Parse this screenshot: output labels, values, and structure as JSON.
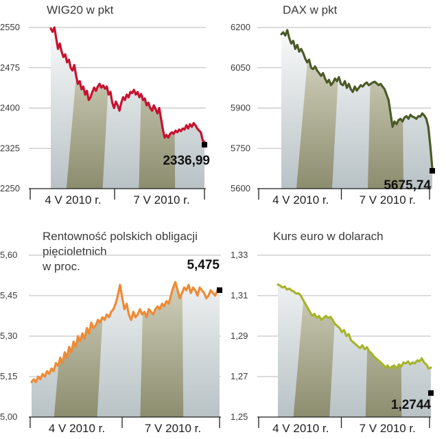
{
  "chart_data": [
    {
      "type": "line",
      "title": "WIG20 w pkt",
      "color": "#c8102e",
      "yticks": [
        "2550",
        "2475",
        "2400",
        "2325",
        "2250"
      ],
      "ylim": [
        2250,
        2550
      ],
      "x_labels": [
        "4 V 2010 r.",
        "7 V 2010 r."
      ],
      "last_value_label": "2336,99",
      "series": [
        {
          "values": [
            2548,
            2542,
            2550,
            2530,
            2510,
            2520,
            2505,
            2495,
            2500,
            2485,
            2490,
            2475,
            2470,
            2480,
            2460,
            2445,
            2450,
            2435,
            2440,
            2425,
            2432,
            2415,
            2420,
            2430,
            2438,
            2432,
            2440,
            2445,
            2438,
            2442,
            2436,
            2440,
            2425,
            2430,
            2410,
            2400,
            2412,
            2405,
            2395,
            2410,
            2420,
            2415,
            2425,
            2420,
            2430,
            2428,
            2434,
            2425,
            2430,
            2420,
            2426,
            2415,
            2418,
            2405,
            2410,
            2400,
            2395,
            2405,
            2398,
            2390,
            2400,
            2380,
            2360,
            2345,
            2350,
            2345,
            2352,
            2355,
            2352,
            2358,
            2355,
            2360,
            2357,
            2362,
            2360,
            2368,
            2362,
            2370,
            2365,
            2372,
            2368,
            2362,
            2358,
            2355,
            2340,
            2337
          ]
        }
      ]
    },
    {
      "type": "line",
      "title": "DAX w pkt",
      "color": "#4b5a26",
      "yticks": [
        "6200",
        "6050",
        "5900",
        "5750",
        "5600"
      ],
      "ylim": [
        5600,
        6200
      ],
      "x_labels": [
        "4 V 2010 r.",
        "7 V 2010 r."
      ],
      "last_value_label": "5675,74",
      "series": [
        {
          "values": [
            6175,
            6182,
            6170,
            6190,
            6160,
            6140,
            6150,
            6120,
            6135,
            6110,
            6120,
            6105,
            6085,
            6070,
            6080,
            6050,
            6045,
            6055,
            6040,
            6030,
            6020,
            6030,
            6010,
            5995,
            6005,
            5985,
            5995,
            6010,
            6000,
            6015,
            5990,
            5985,
            6000,
            5975,
            5990,
            5970,
            5960,
            5980,
            5965,
            5975,
            5985,
            5980,
            5990,
            5995,
            5985,
            5990,
            5995,
            5998,
            5992,
            5985,
            5990,
            5980,
            5970,
            5950,
            5930,
            5880,
            5830,
            5850,
            5840,
            5855,
            5860,
            5850,
            5865,
            5870,
            5860,
            5875,
            5868,
            5865,
            5860,
            5870,
            5868,
            5880,
            5872,
            5860,
            5830,
            5760,
            5676
          ]
        }
      ]
    },
    {
      "type": "line",
      "title": "Rentowność polskich obligacji pięcioletnich w proc.",
      "title_lines": [
        "Rentowność polskich obligacji",
        "pięcioletnich",
        "w proc."
      ],
      "color": "#ee8a35",
      "yticks": [
        "5,60",
        "5,45",
        "5,30",
        "5,15",
        "5,00"
      ],
      "ylim": [
        5.0,
        5.6
      ],
      "x_labels": [
        "4 V 2010 r.",
        "7 V 2010 r."
      ],
      "last_value_label": "5,475",
      "series": [
        {
          "values": [
            5.13,
            5.14,
            5.13,
            5.15,
            5.14,
            5.16,
            5.15,
            5.17,
            5.16,
            5.18,
            5.17,
            5.2,
            5.19,
            5.22,
            5.2,
            5.24,
            5.22,
            5.26,
            5.24,
            5.28,
            5.26,
            5.3,
            5.28,
            5.31,
            5.29,
            5.33,
            5.31,
            5.35,
            5.33,
            5.34,
            5.36,
            5.35,
            5.37,
            5.36,
            5.38,
            5.37,
            5.39,
            5.4,
            5.42,
            5.45,
            5.49,
            5.44,
            5.4,
            5.42,
            5.38,
            5.36,
            5.39,
            5.37,
            5.38,
            5.4,
            5.38,
            5.39,
            5.37,
            5.4,
            5.39,
            5.38,
            5.4,
            5.41,
            5.4,
            5.42,
            5.41,
            5.43,
            5.42,
            5.45,
            5.48,
            5.5,
            5.47,
            5.44,
            5.46,
            5.48,
            5.47,
            5.49,
            5.46,
            5.48,
            5.47,
            5.45,
            5.48,
            5.47,
            5.46,
            5.44,
            5.45,
            5.47,
            5.46,
            5.45,
            5.47,
            5.475
          ]
        }
      ]
    },
    {
      "type": "line",
      "title": "Kurs euro w dolarach",
      "color": "#a5b42a",
      "yticks": [
        "1,33",
        "1,31",
        "1,29",
        "1,27",
        "1,25"
      ],
      "ylim": [
        1.25,
        1.33
      ],
      "x_labels": [
        "4 V 2010 r.",
        "7 V 2010 r."
      ],
      "last_value_label": "1,2744",
      "series": [
        {
          "values": [
            1.3155,
            1.315,
            1.314,
            1.3145,
            1.313,
            1.3135,
            1.3125,
            1.312,
            1.311,
            1.3112,
            1.31,
            1.308,
            1.306,
            1.304,
            1.302,
            1.3,
            1.301,
            1.299,
            1.3,
            1.298,
            1.299,
            1.3,
            1.299,
            1.2995,
            1.298,
            1.296,
            1.295,
            1.294,
            1.292,
            1.293,
            1.29,
            1.291,
            1.288,
            1.287,
            1.286,
            1.285,
            1.284,
            1.2855,
            1.2835,
            1.2845,
            1.2825,
            1.2815,
            1.28,
            1.279,
            1.278,
            1.277,
            1.276,
            1.2745,
            1.2755,
            1.274,
            1.275,
            1.2755,
            1.274,
            1.276,
            1.275,
            1.277,
            1.2765,
            1.2775,
            1.276,
            1.277,
            1.2765,
            1.278,
            1.2775,
            1.279,
            1.277,
            1.276,
            1.274,
            1.2744
          ]
        }
      ]
    }
  ]
}
